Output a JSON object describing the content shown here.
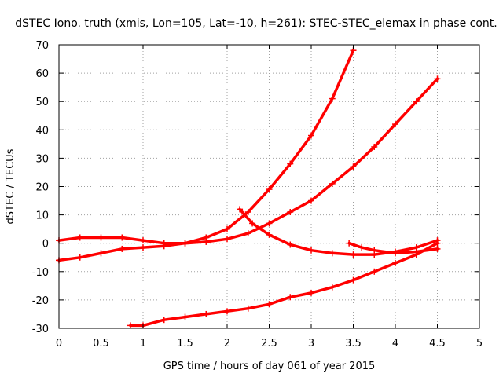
{
  "chart_data": {
    "type": "scatter",
    "title": "dSTEC Iono. truth (xmis, Lon=105, Lat=-10, h=261): STEC-STEC_elemax in phase cont.",
    "xlabel": "GPS time / hours of day 061 of year 2015",
    "ylabel": "dSTEC  / TECUs",
    "xlim": [
      0,
      5
    ],
    "ylim": [
      -30,
      70
    ],
    "xticks": [
      "0",
      "0.5",
      "1",
      "1.5",
      "2",
      "2.5",
      "3",
      "3.5",
      "4",
      "4.5",
      "5"
    ],
    "yticks": [
      "-30",
      "-20",
      "-10",
      "0",
      "10",
      "20",
      "30",
      "40",
      "50",
      "60",
      "70"
    ],
    "grid": true,
    "legend": "none",
    "marker": "plus",
    "color": "#ff0000",
    "series": [
      {
        "x": [
          0.0,
          0.25,
          0.5,
          0.75,
          1.0,
          1.25,
          1.5,
          1.75,
          2.0,
          2.25,
          2.5,
          2.75,
          3.0,
          3.25,
          3.5
        ],
        "y": [
          1,
          2,
          2,
          2,
          1,
          0,
          0,
          2,
          5,
          11,
          19,
          28,
          38,
          51,
          68
        ]
      },
      {
        "x": [
          0.0,
          0.25,
          0.5,
          0.75,
          1.0,
          1.25,
          1.5,
          1.75,
          2.0,
          2.25,
          2.5,
          2.75,
          3.0,
          3.25,
          3.5,
          3.75,
          4.0,
          4.25,
          4.5
        ],
        "y": [
          -6,
          -5,
          -3.5,
          -2,
          -1.5,
          -1,
          0,
          0.5,
          1.5,
          3.5,
          7,
          11,
          15,
          21,
          27,
          34,
          42,
          50,
          58
        ]
      },
      {
        "x": [
          2.15,
          2.3,
          2.5,
          2.75,
          3.0,
          3.25,
          3.5,
          3.75,
          4.0,
          4.25,
          4.5
        ],
        "y": [
          12,
          7,
          3,
          -0.5,
          -2.5,
          -3.5,
          -4,
          -4,
          -3,
          -1.5,
          1
        ]
      },
      {
        "x": [
          3.45,
          3.6,
          3.75,
          4.0,
          4.25,
          4.5
        ],
        "y": [
          0,
          -1.5,
          -2.5,
          -3.5,
          -3,
          -2
        ]
      },
      {
        "x": [
          0.85,
          1.0,
          1.25,
          1.5,
          1.75,
          2.0,
          2.25,
          2.5,
          2.75,
          3.0,
          3.25,
          3.5,
          3.75,
          4.0,
          4.25,
          4.5
        ],
        "y": [
          -29,
          -29,
          -27,
          -26,
          -25,
          -24,
          -23,
          -21.5,
          -19,
          -17.5,
          -15.5,
          -13,
          -10,
          -7,
          -4,
          0
        ]
      }
    ]
  }
}
